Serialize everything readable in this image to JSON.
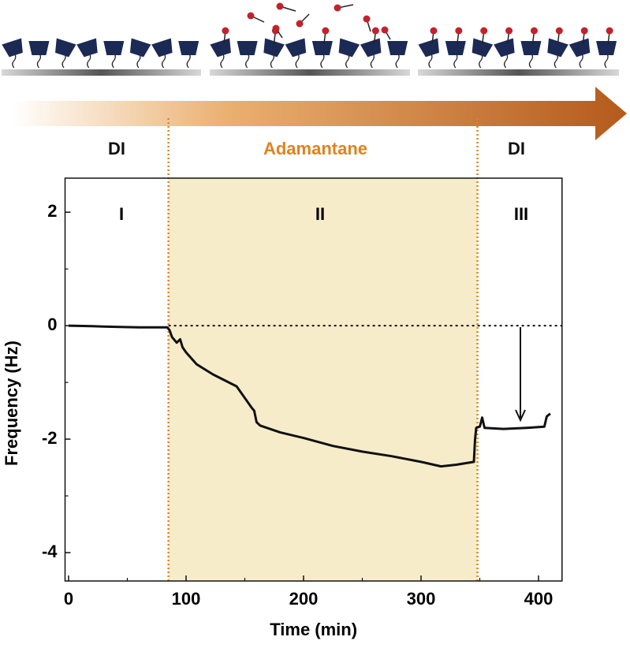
{
  "chart_data": {
    "type": "line",
    "xlabel": "Time (min)",
    "ylabel": "Frequency (Hz)",
    "region_labels": [
      "DI",
      "Adamantane",
      "DI"
    ],
    "stage_labels": [
      "I",
      "II",
      "III"
    ],
    "shaded_span": [
      85,
      348
    ],
    "shade_color": "#f7ecca",
    "span_line_color": "#e0821e",
    "xlim": [
      -3,
      420
    ],
    "ylim": [
      -4.5,
      2.6
    ],
    "xticks": [
      0,
      100,
      200,
      300,
      400
    ],
    "yticks": [
      2,
      0,
      -2,
      -4
    ],
    "xminorticks": [
      50,
      150,
      250,
      350
    ],
    "yminorticks": [
      1,
      -1,
      -3
    ],
    "series": [
      {
        "color": "#111111",
        "x": [
          0,
          20,
          40,
          60,
          84,
          86,
          88,
          92,
          95,
          97,
          100,
          109,
          123,
          143,
          156,
          158,
          160,
          163,
          180,
          200,
          225,
          250,
          275,
          300,
          317,
          330,
          345,
          346,
          347,
          350,
          352,
          354,
          370,
          390,
          405,
          407,
          410
        ],
        "values": [
          0.0,
          -0.01,
          -0.02,
          -0.03,
          -0.03,
          -0.08,
          -0.2,
          -0.3,
          -0.24,
          -0.38,
          -0.47,
          -0.68,
          -0.86,
          -1.07,
          -1.45,
          -1.5,
          -1.7,
          -1.76,
          -1.88,
          -1.98,
          -2.12,
          -2.22,
          -2.3,
          -2.4,
          -2.48,
          -2.45,
          -2.4,
          -2.0,
          -1.8,
          -1.78,
          -1.62,
          -1.8,
          -1.82,
          -1.8,
          -1.78,
          -1.6,
          -1.55
        ]
      }
    ]
  }
}
